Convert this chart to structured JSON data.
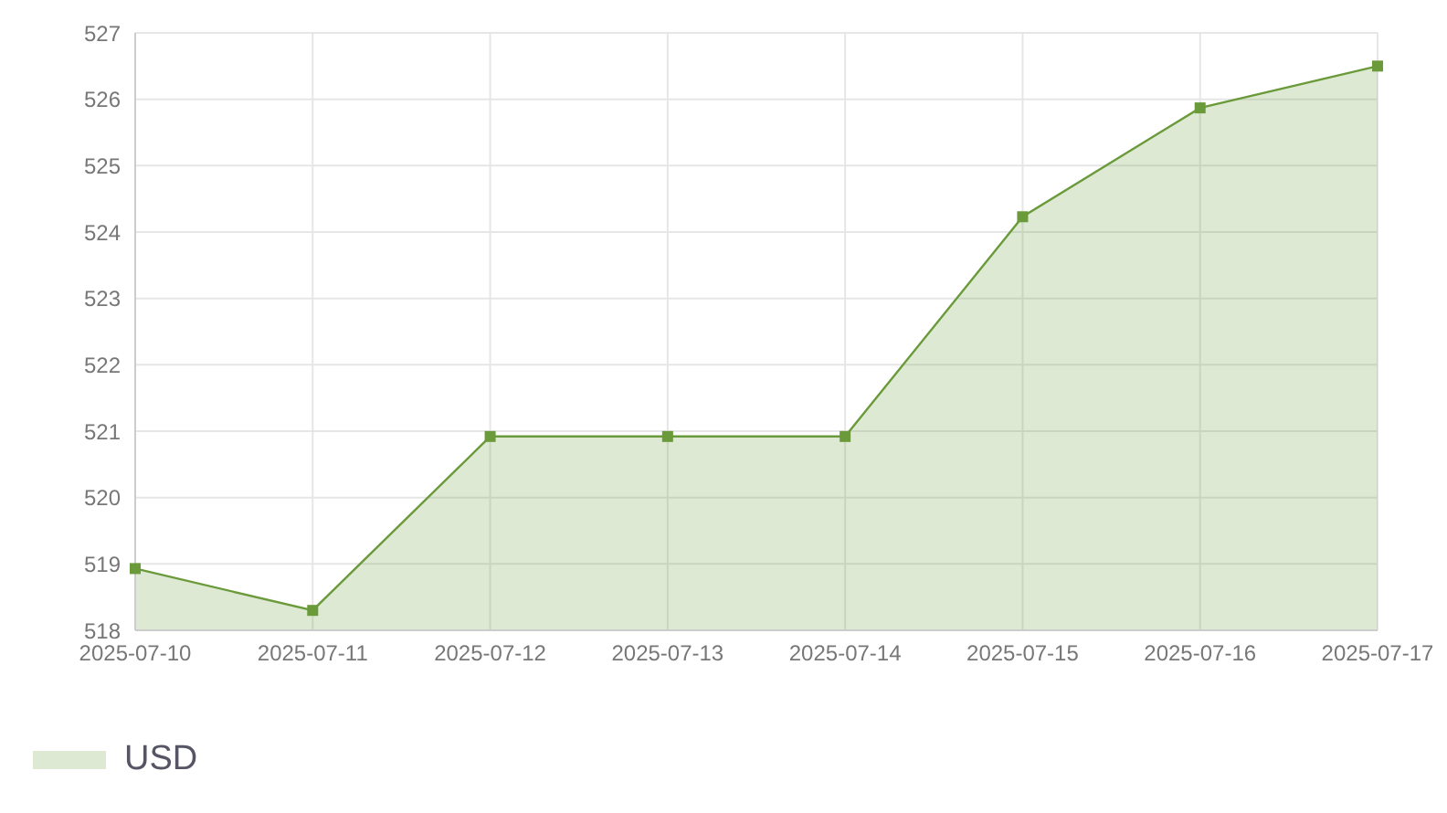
{
  "chart_data": {
    "type": "area",
    "categories": [
      "2025-07-10",
      "2025-07-11",
      "2025-07-12",
      "2025-07-13",
      "2025-07-14",
      "2025-07-15",
      "2025-07-16",
      "2025-07-17"
    ],
    "series": [
      {
        "name": "USD",
        "color": "#6a9a3a",
        "values": [
          518.93,
          518.3,
          520.92,
          520.92,
          520.92,
          524.23,
          525.87,
          526.5
        ]
      }
    ],
    "ylim": [
      518,
      527
    ],
    "yticks": [
      518,
      519,
      520,
      521,
      522,
      523,
      524,
      525,
      526,
      527
    ],
    "grid": true,
    "legend": "bottom left",
    "marker": "square"
  }
}
